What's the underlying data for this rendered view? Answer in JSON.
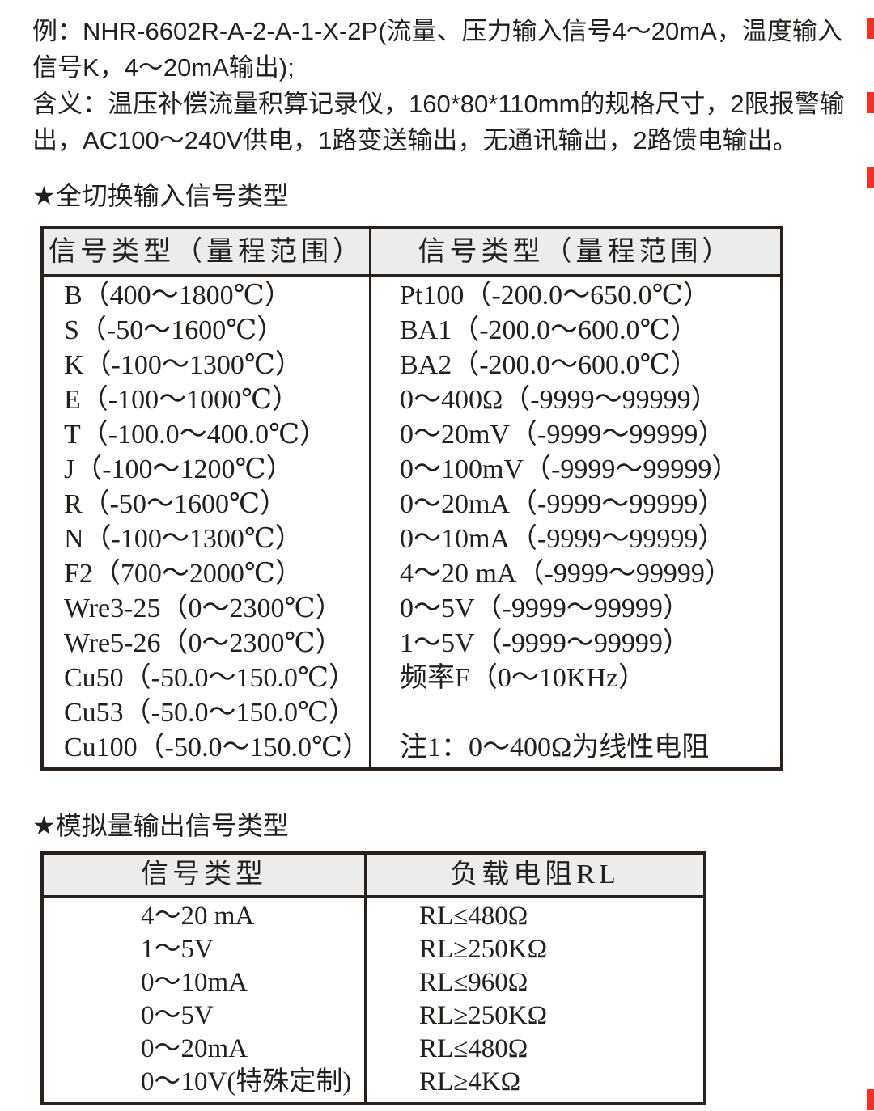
{
  "page": {
    "bg": "#ffffff",
    "text_color": "#231f1c",
    "border_color": "#2b211c",
    "header_bg": "#edecec",
    "mark_red": "#e8332a"
  },
  "intro": {
    "lines": [
      "例：NHR-6602R-A-2-A-1-X-2P(流量、压力输入信号4～20mA，温度输入",
      "信号K，4～20mA输出);",
      "含义：温压补偿流量积算记录仪，160*80*110mm的规格尺寸，2限报警输",
      "出，AC100～240V供电，1路变送输出，无通讯输出，2路馈电输出。"
    ]
  },
  "input_section": {
    "heading": "★全切换输入信号类型",
    "col1_header": "信号类型（量程范围）",
    "col2_header": "信号类型（量程范围）",
    "col1_rows": [
      "B（400～1800℃）",
      "S（-50～1600℃）",
      "K（-100～1300℃）",
      "E（-100～1000℃）",
      "T（-100.0～400.0℃）",
      "J（-100～1200℃）",
      "R（-50～1600℃）",
      "N（-100～1300℃）",
      "F2（700～2000℃）",
      "Wre3-25（0～2300℃）",
      "Wre5-26（0～2300℃）",
      "Cu50（-50.0～150.0℃）",
      "Cu53（-50.0～150.0℃）",
      "Cu100（-50.0～150.0℃）"
    ],
    "col2_rows": [
      "Pt100（-200.0～650.0℃）",
      "BA1（-200.0～600.0℃）",
      "BA2（-200.0～600.0℃）",
      "0～400Ω（-9999～99999）",
      "0～20mV（-9999～99999）",
      "0～100mV（-9999～99999）",
      "0～20mA（-9999～99999）",
      "0～10mA（-9999～99999）",
      "4～20 mA（-9999～99999）",
      "0～5V（-9999～99999）",
      "1～5V（-9999～99999）",
      "频率F（0～10KHz）",
      "",
      "注1：0～400Ω为线性电阻"
    ]
  },
  "output_section": {
    "heading": "★模拟量输出信号类型",
    "col1_header": "信号类型",
    "col2_header": "负载电阻RL",
    "rows": [
      {
        "signal": "4～20 mA",
        "load": "RL≤480Ω"
      },
      {
        "signal": "1～5V",
        "load": "RL≥250KΩ"
      },
      {
        "signal": "0～10mA",
        "load": "RL≤960Ω"
      },
      {
        "signal": "0～5V",
        "load": "RL≥250KΩ"
      },
      {
        "signal": "0～20mA",
        "load": "RL≤480Ω"
      },
      {
        "signal": "0～10V(特殊定制)",
        "load": "RL≥4KΩ"
      }
    ]
  }
}
